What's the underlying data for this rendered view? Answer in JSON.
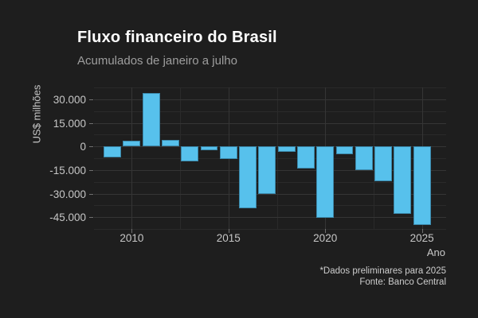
{
  "title": "Fluxo financeiro do Brasil",
  "subtitle": "Acumulados de janeiro a julho",
  "caption": {
    "line1": "*Dados preliminares para 2025",
    "line2": "Fonte: Banco Central"
  },
  "colors": {
    "background": "#1e1e1e",
    "bar": "#57c1ec",
    "grid_major": "#353535",
    "grid_minor": "#2a2a2a",
    "title_text": "#ffffff",
    "subtitle_text": "#9e9e9e",
    "axis_text": "#c6c6c6"
  },
  "chart_data": {
    "type": "bar",
    "title": "Fluxo financeiro do Brasil",
    "subtitle": "Acumulados de janeiro a julho",
    "xlabel": "Ano",
    "ylabel": "US$ milhões",
    "x": [
      2009,
      2010,
      2011,
      2012,
      2013,
      2014,
      2015,
      2016,
      2017,
      2018,
      2019,
      2020,
      2021,
      2022,
      2023,
      2024,
      2025
    ],
    "values": [
      -6900,
      3700,
      34000,
      4200,
      -9400,
      -2500,
      -7900,
      -39400,
      -30400,
      -3600,
      -14000,
      -45600,
      -5000,
      -15300,
      -22400,
      -43100,
      -50200
    ],
    "unit": "US$ milhões",
    "ylim": [
      -52500,
      37500
    ],
    "xlim": [
      2008.05,
      2026.25
    ],
    "yticks": {
      "values": [
        30000,
        15000,
        0,
        -15000,
        -30000,
        -45000
      ],
      "labels": [
        "30.000",
        "15.000",
        "0",
        "-15.000",
        "-30.000",
        "-45.000"
      ]
    },
    "yticks_minor": [
      37500,
      22500,
      7500,
      -7500,
      -22500,
      -37500,
      -52500
    ],
    "xticks": {
      "values": [
        2010,
        2015,
        2020,
        2025
      ],
      "labels": [
        "2010",
        "2015",
        "2020",
        "2025"
      ]
    },
    "xticks_minor": [
      2012.5,
      2017.5,
      2022.5
    ],
    "grid": true,
    "legend": false,
    "bar_color": "#57c1ec"
  }
}
